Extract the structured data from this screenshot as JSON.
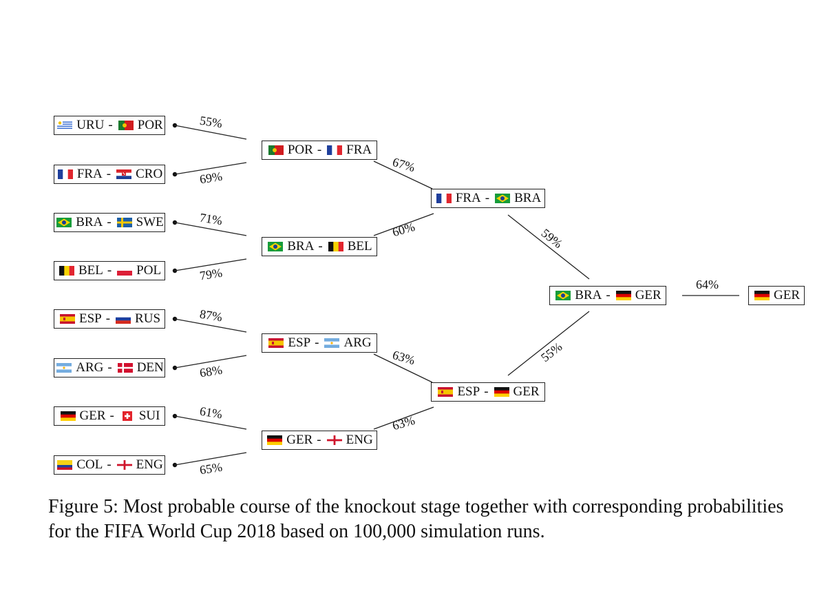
{
  "flags": {
    "URU": "uruguay-flag-icon",
    "POR": "portugal-flag-icon",
    "FRA": "france-flag-icon",
    "CRO": "croatia-flag-icon",
    "BRA": "brazil-flag-icon",
    "SWE": "sweden-flag-icon",
    "BEL": "belgium-flag-icon",
    "POL": "poland-flag-icon",
    "ESP": "spain-flag-icon",
    "RUS": "russia-flag-icon",
    "ARG": "argentina-flag-icon",
    "DEN": "denmark-flag-icon",
    "GER": "germany-flag-icon",
    "SUI": "switzerland-flag-icon",
    "COL": "colombia-flag-icon",
    "ENG": "england-flag-icon"
  },
  "round_of_16": [
    {
      "a": "URU",
      "b": "POR",
      "prob": "55%"
    },
    {
      "a": "FRA",
      "b": "CRO",
      "prob": "69%"
    },
    {
      "a": "BRA",
      "b": "SWE",
      "prob": "71%"
    },
    {
      "a": "BEL",
      "b": "POL",
      "prob": "79%"
    },
    {
      "a": "ESP",
      "b": "RUS",
      "prob": "87%"
    },
    {
      "a": "ARG",
      "b": "DEN",
      "prob": "68%"
    },
    {
      "a": "GER",
      "b": "SUI",
      "prob": "61%"
    },
    {
      "a": "COL",
      "b": "ENG",
      "prob": "65%"
    }
  ],
  "quarter_finals": [
    {
      "a": "POR",
      "b": "FRA",
      "prob": "67%"
    },
    {
      "a": "BRA",
      "b": "BEL",
      "prob": "60%"
    },
    {
      "a": "ESP",
      "b": "ARG",
      "prob": "63%"
    },
    {
      "a": "GER",
      "b": "ENG",
      "prob": "63%"
    }
  ],
  "semi_finals": [
    {
      "a": "FRA",
      "b": "BRA",
      "prob": "59%"
    },
    {
      "a": "ESP",
      "b": "GER",
      "prob": "55%"
    }
  ],
  "final": {
    "a": "BRA",
    "b": "GER",
    "prob": "64%"
  },
  "champion": "GER",
  "caption": "Figure 5: Most probable course of the knockout stage together with corresponding probabilities for the FIFA World Cup 2018 based on 100,000 simulation runs.",
  "colors": {
    "line": "#222222",
    "background": "#ffffff"
  }
}
